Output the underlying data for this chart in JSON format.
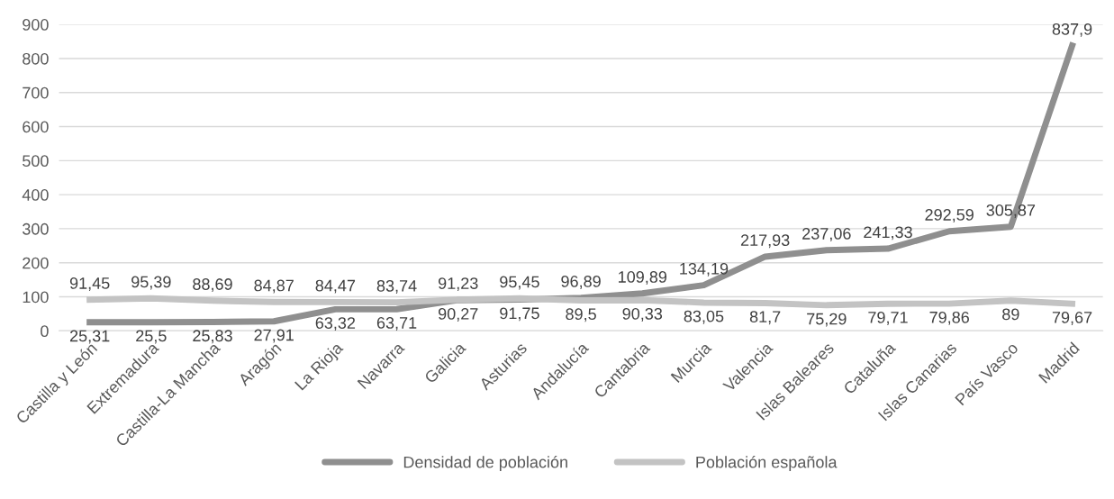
{
  "chart_data": {
    "type": "line",
    "categories": [
      "Castilla y León",
      "Extremadura",
      "Castilla-La Mancha",
      "Aragón",
      "La Rioja",
      "Navarra",
      "Galicia",
      "Asturias",
      "Andalucía",
      "Cantabria",
      "Murcia",
      "Valencia",
      "Islas Baleares",
      "Cataluña",
      "Islas Canarias",
      "País Vasco",
      "Madrid"
    ],
    "series": [
      {
        "name": "Densidad de población",
        "color": "#8f8f8f",
        "values": [
          25.31,
          25.5,
          25.83,
          27.91,
          63.32,
          63.71,
          90.27,
          91.75,
          96.89,
          109.89,
          134.19,
          217.93,
          237.06,
          241.33,
          292.59,
          305.87,
          837.9
        ],
        "value_labels": [
          "25,31",
          "25,5",
          "25,83",
          "27,91",
          "63,32",
          "63,71",
          "90,27",
          "91,75",
          "96,89",
          "109,89",
          "134,19",
          "217,93",
          "237,06",
          "241,33",
          "292,59",
          "305,87",
          "837,9"
        ]
      },
      {
        "name": "Población española",
        "color": "#c3c3c3",
        "values": [
          91.45,
          95.39,
          88.69,
          84.87,
          84.47,
          83.74,
          91.23,
          95.45,
          89.5,
          90.33,
          83.05,
          81.7,
          75.29,
          79.71,
          79.86,
          89,
          79.67
        ],
        "value_labels": [
          "91,45",
          "95,39",
          "88,69",
          "84,87",
          "84,47",
          "83,74",
          "91,23",
          "95,45",
          "89,5",
          "90,33",
          "83,05",
          "81,7",
          "75,29",
          "79,71",
          "79,86",
          "89",
          "79,67"
        ]
      }
    ],
    "ylim": [
      0,
      900
    ],
    "yticks": [
      0,
      100,
      200,
      300,
      400,
      500,
      600,
      700,
      800,
      900
    ],
    "grid": "y",
    "legend": "bottom",
    "marker": "none",
    "line_style": "solid"
  }
}
